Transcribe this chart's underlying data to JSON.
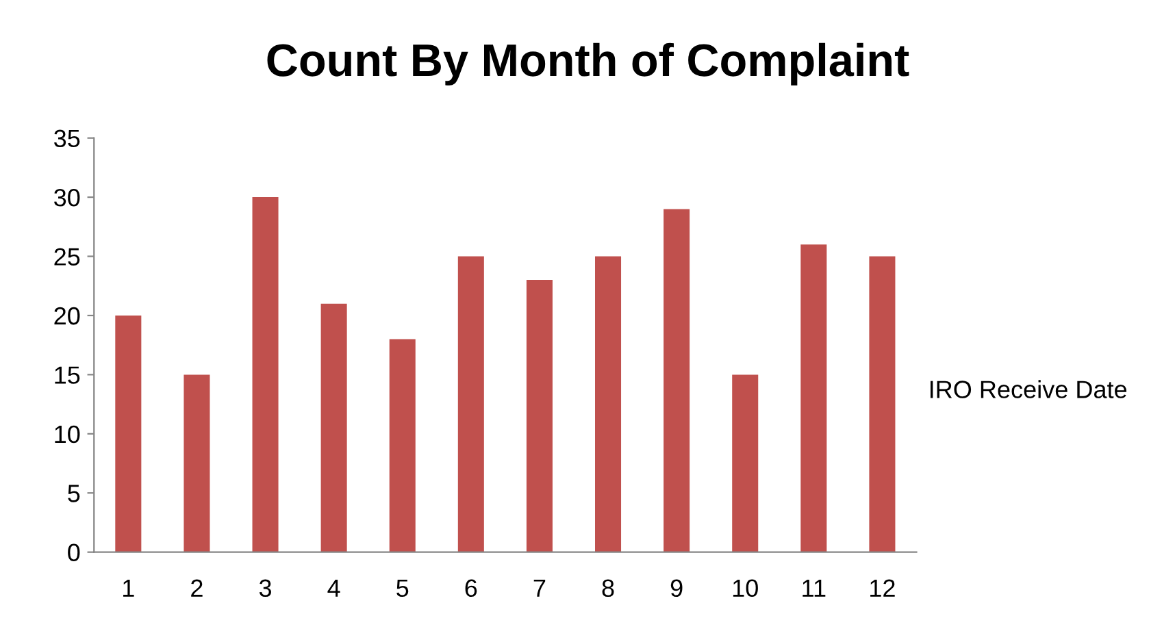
{
  "chart_data": {
    "type": "bar",
    "title": "Count By Month of Complaint",
    "categories": [
      "1",
      "2",
      "3",
      "4",
      "5",
      "6",
      "7",
      "8",
      "9",
      "10",
      "11",
      "12"
    ],
    "values": [
      20,
      15,
      30,
      21,
      18,
      25,
      23,
      25,
      29,
      15,
      26,
      25
    ],
    "color": "#c0504d",
    "ylim": [
      0,
      35
    ],
    "yticks": [
      0,
      5,
      10,
      15,
      20,
      25,
      30,
      35
    ],
    "grid": false,
    "annotations": [
      "IRO Receive Date"
    ]
  }
}
